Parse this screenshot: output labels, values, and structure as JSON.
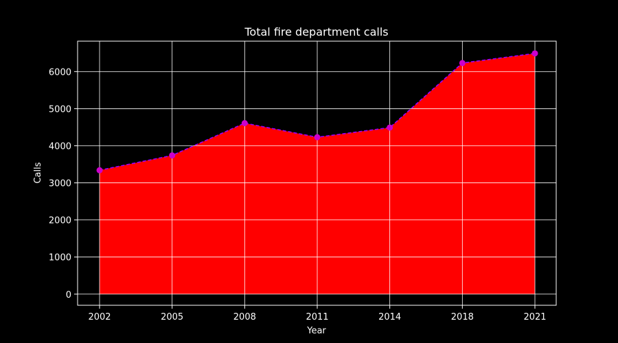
{
  "chart_data": {
    "type": "area",
    "title": "Total fire department calls",
    "xlabel": "Year",
    "ylabel": "Calls",
    "categories": [
      "2002",
      "2005",
      "2008",
      "2011",
      "2014",
      "2018",
      "2021"
    ],
    "values": [
      3340,
      3740,
      4610,
      4230,
      4490,
      6230,
      6490
    ],
    "ylim": [
      -300,
      6820
    ],
    "yticks": [
      0,
      1000,
      2000,
      3000,
      4000,
      5000,
      6000
    ],
    "grid": true,
    "colors": {
      "background": "#000000",
      "fill": "#ff0000",
      "line": "#9900ff",
      "marker": "#cc00cc",
      "grid": "#ffffff",
      "axes": "#ffffff",
      "text": "#ffffff"
    }
  }
}
